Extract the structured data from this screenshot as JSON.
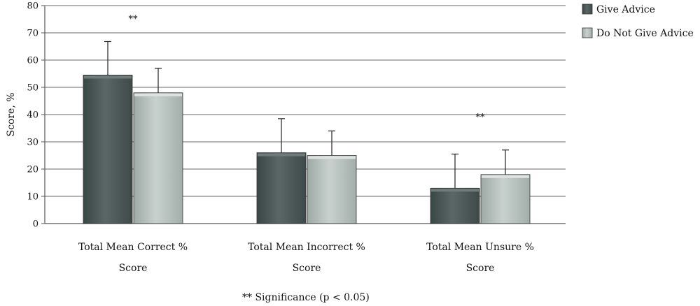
{
  "chart_data": {
    "type": "bar",
    "title": "",
    "xlabel": "",
    "ylabel": "Score, %",
    "ylim": [
      0,
      80
    ],
    "yticks": [
      0,
      10,
      20,
      30,
      40,
      50,
      60,
      70,
      80
    ],
    "grid": true,
    "legend_position": "top-right",
    "categories": [
      [
        "Total Mean Correct %",
        "Score"
      ],
      [
        "Total Mean Incorrect %",
        "Score"
      ],
      [
        "Total Mean Unsure %",
        "Score"
      ]
    ],
    "series": [
      {
        "name": "Give Advice",
        "values": [
          54.5,
          26,
          13
        ],
        "error_upper": [
          66.8,
          38.5,
          25.5
        ],
        "color": "#4b5756"
      },
      {
        "name": "Do Not Give Advice",
        "values": [
          48,
          25,
          18
        ],
        "error_upper": [
          57,
          34,
          27
        ],
        "color": "#b8c2bf"
      }
    ],
    "significance_markers": [
      {
        "text": "**",
        "category_index": 0,
        "y": 74
      },
      {
        "text": "**",
        "category_index": 2,
        "y": 38
      }
    ],
    "footnote": "** Significance (p < 0.05)"
  }
}
